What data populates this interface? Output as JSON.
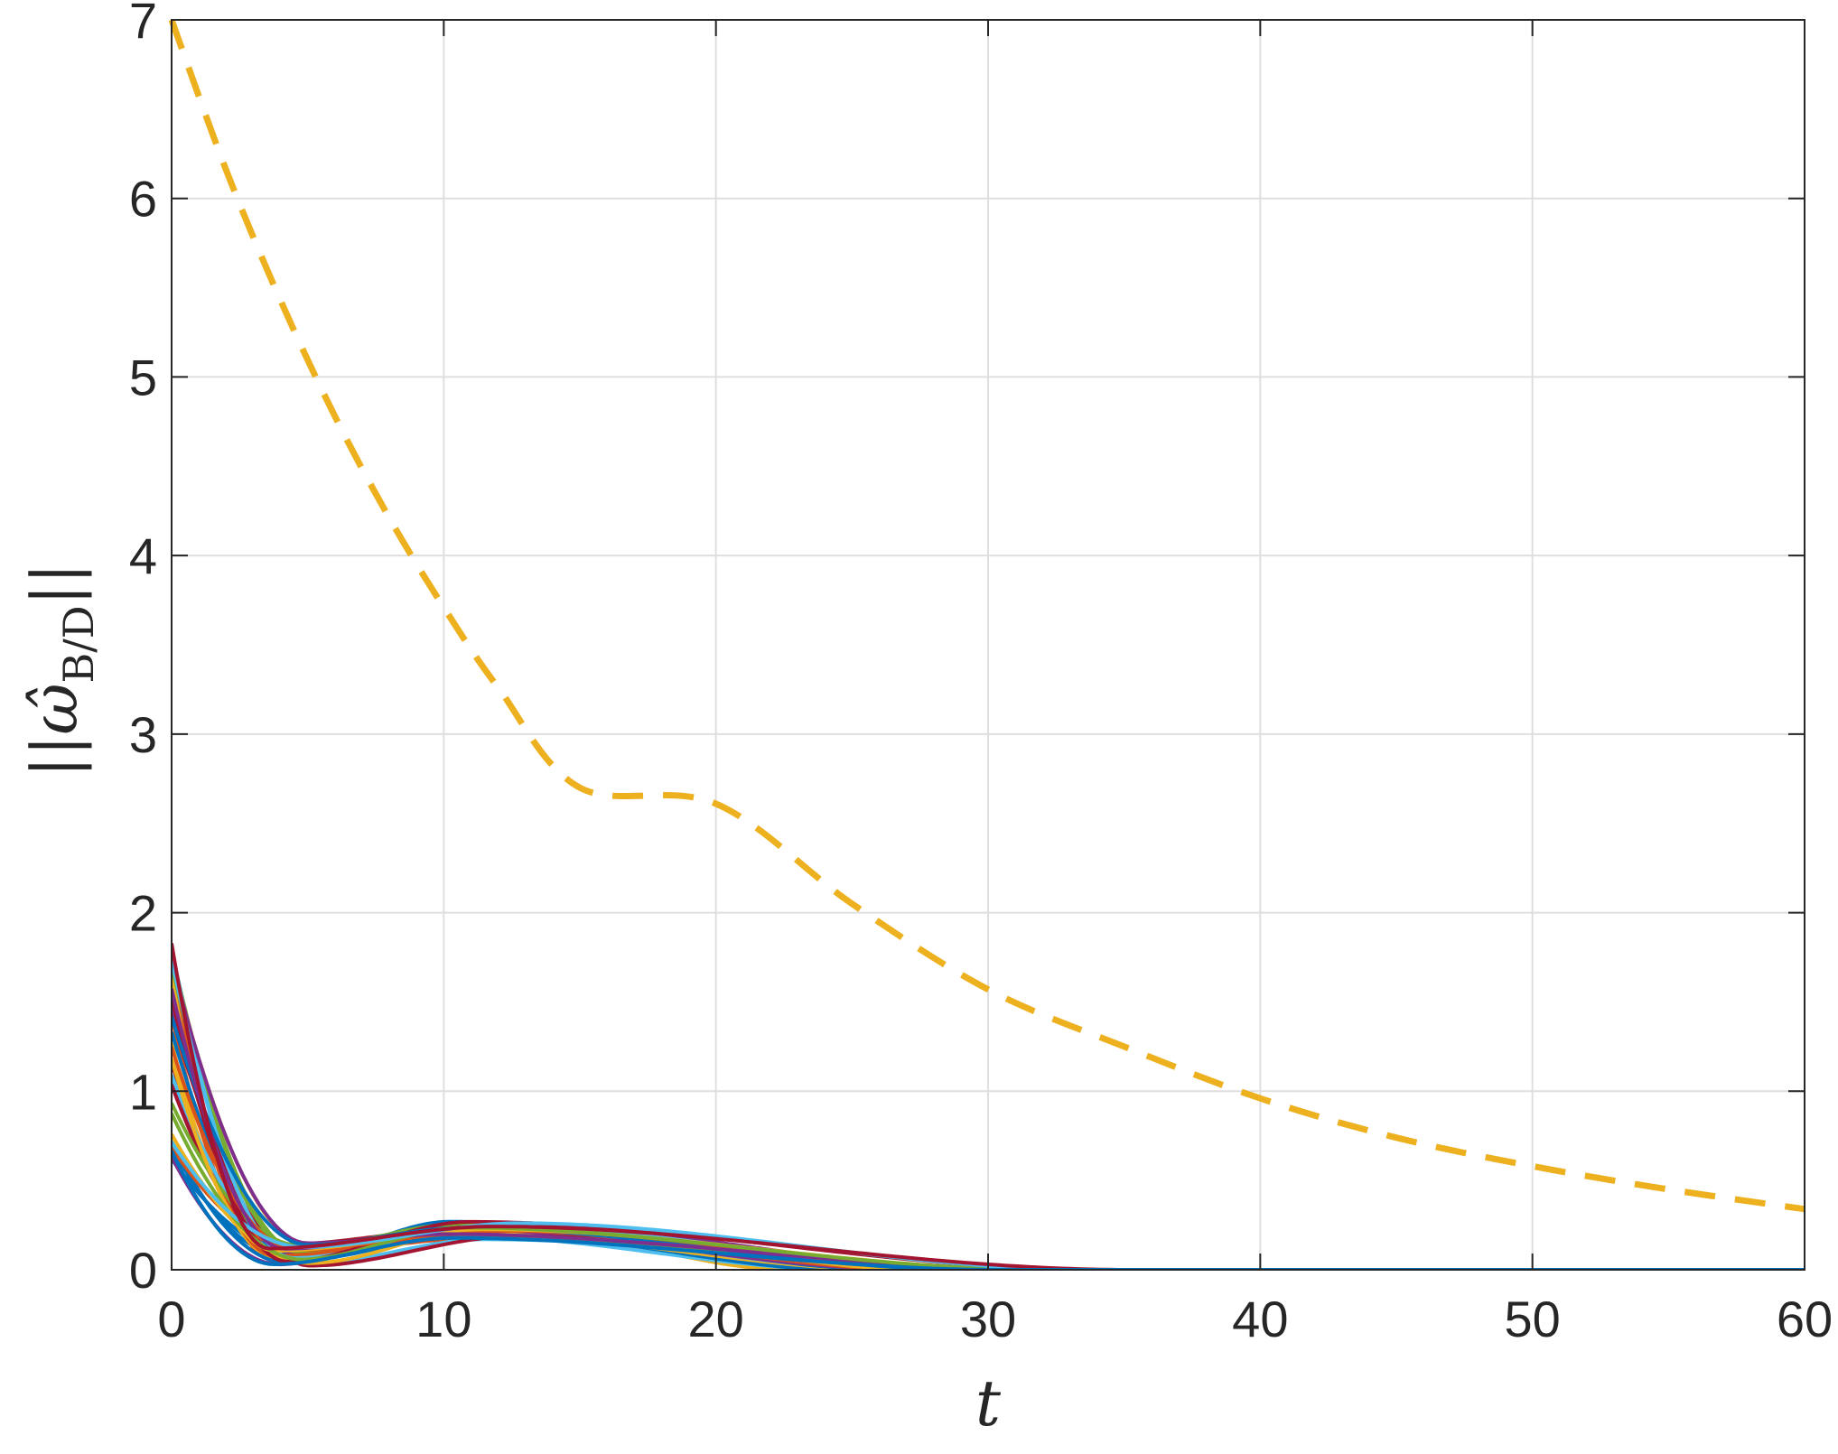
{
  "chart_data": {
    "type": "line",
    "title": "",
    "xlabel": "t",
    "ylabel": "||ω̂B/D||",
    "ylabel_parts": {
      "open": "||",
      "symbol": "ω̂",
      "subscript": "B/D",
      "close": "||"
    },
    "xlim": [
      0,
      60
    ],
    "ylim": [
      0,
      7
    ],
    "xticks": [
      0,
      10,
      20,
      30,
      40,
      50,
      60
    ],
    "yticks": [
      0,
      1,
      2,
      3,
      4,
      5,
      6,
      7
    ],
    "xtick_labels": [
      "0",
      "10",
      "20",
      "30",
      "40",
      "50",
      "60"
    ],
    "ytick_labels": [
      "0",
      "1",
      "2",
      "3",
      "4",
      "5",
      "6",
      "7"
    ],
    "grid": true,
    "legend": "none",
    "bound": {
      "style": "dashed",
      "color": "#EDB120",
      "x": [
        0,
        2,
        4,
        6,
        8,
        10,
        12,
        15,
        20,
        25,
        30,
        35,
        40,
        45,
        50,
        55,
        60
      ],
      "y": [
        7.0,
        6.16,
        5.43,
        4.78,
        4.21,
        3.71,
        3.26,
        2.7,
        2.61,
        2.05,
        1.57,
        1.25,
        0.96,
        0.74,
        0.58,
        0.45,
        0.34
      ]
    },
    "trajectories": {
      "count": 36,
      "colors": [
        "#0072BD",
        "#D95319",
        "#EDB120",
        "#7E2F8E",
        "#77AC30",
        "#4DBEEE",
        "#A2142F"
      ],
      "initial_range": [
        0.62,
        1.88
      ],
      "dip_time_range": [
        3.5,
        5.2
      ],
      "dip_value_range": [
        0.02,
        0.15
      ],
      "peak_time_range": [
        10,
        13
      ],
      "peak_value_range": [
        0.17,
        0.27
      ],
      "settle_time_range": [
        22,
        36
      ]
    }
  }
}
